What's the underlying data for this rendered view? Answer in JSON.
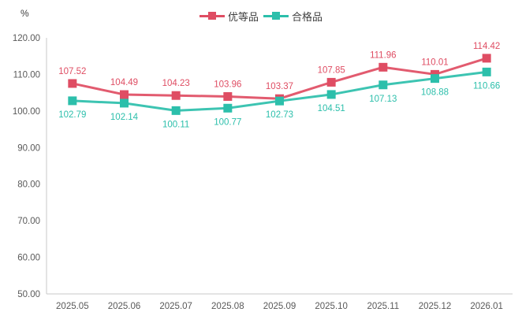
{
  "chart_data": {
    "type": "line",
    "title": "",
    "ylabel_unit": "%",
    "categories": [
      "2025.05",
      "2025.06",
      "2025.07",
      "2025.08",
      "2025.09",
      "2025.10",
      "2025.11",
      "2025.12",
      "2026.01"
    ],
    "series": [
      {
        "name": "优等品",
        "color": "#df4d63",
        "label_position": "above",
        "values": [
          107.52,
          104.49,
          104.23,
          103.96,
          103.37,
          107.85,
          111.96,
          110.01,
          114.42
        ]
      },
      {
        "name": "合格品",
        "color": "#2cbfab",
        "label_position": "below",
        "values": [
          102.79,
          102.14,
          100.11,
          100.77,
          102.73,
          104.51,
          107.13,
          108.88,
          110.66
        ]
      }
    ],
    "ylim": [
      50,
      120
    ],
    "ytick_step": 10,
    "ytick_decimals": 2,
    "grid": false,
    "legend_position": "top-center",
    "marker": "square",
    "axis_color": "#c9c9c9",
    "tick_label_color": "#595959"
  }
}
